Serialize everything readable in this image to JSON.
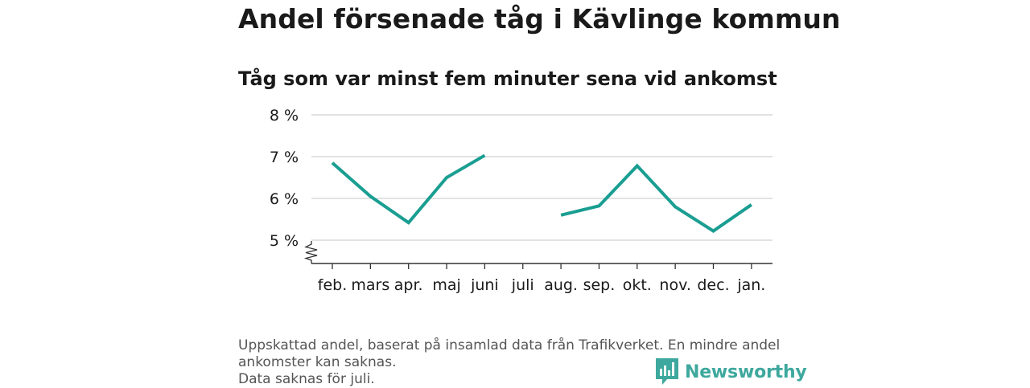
{
  "title": "Andel försenade tåg i Kävlinge kommun",
  "subtitle": "Tåg som var minst fem minuter sena vid ankomst",
  "footnote": {
    "line1": "Uppskattad andel, baserat på insamlad data från Trafikverket. En mindre andel ankomster kan saknas.",
    "line2": "Data saknas för juli."
  },
  "brand": {
    "name": "Newsworthy",
    "icon": "newsworthy-logo-icon",
    "color": "#3ea89e"
  },
  "colors": {
    "line": "#1a9e92",
    "grid": "#d9d9d9",
    "axis": "#333333"
  },
  "chart_data": {
    "type": "line",
    "categories": [
      "feb.",
      "mars",
      "apr.",
      "maj",
      "juni",
      "juli",
      "aug.",
      "sep.",
      "okt.",
      "nov.",
      "dec.",
      "jan."
    ],
    "series": [
      {
        "values": [
          6.85,
          6.05,
          5.42,
          6.5,
          7.03,
          null,
          5.6,
          5.82,
          6.78,
          5.8,
          5.22,
          5.85
        ]
      }
    ],
    "y_ticks": [
      "5 %",
      "6 %",
      "7 %",
      "8 %"
    ],
    "ylim": [
      5,
      8
    ],
    "y_axis_break": true,
    "grid": true,
    "xlabel": "",
    "ylabel": ""
  }
}
